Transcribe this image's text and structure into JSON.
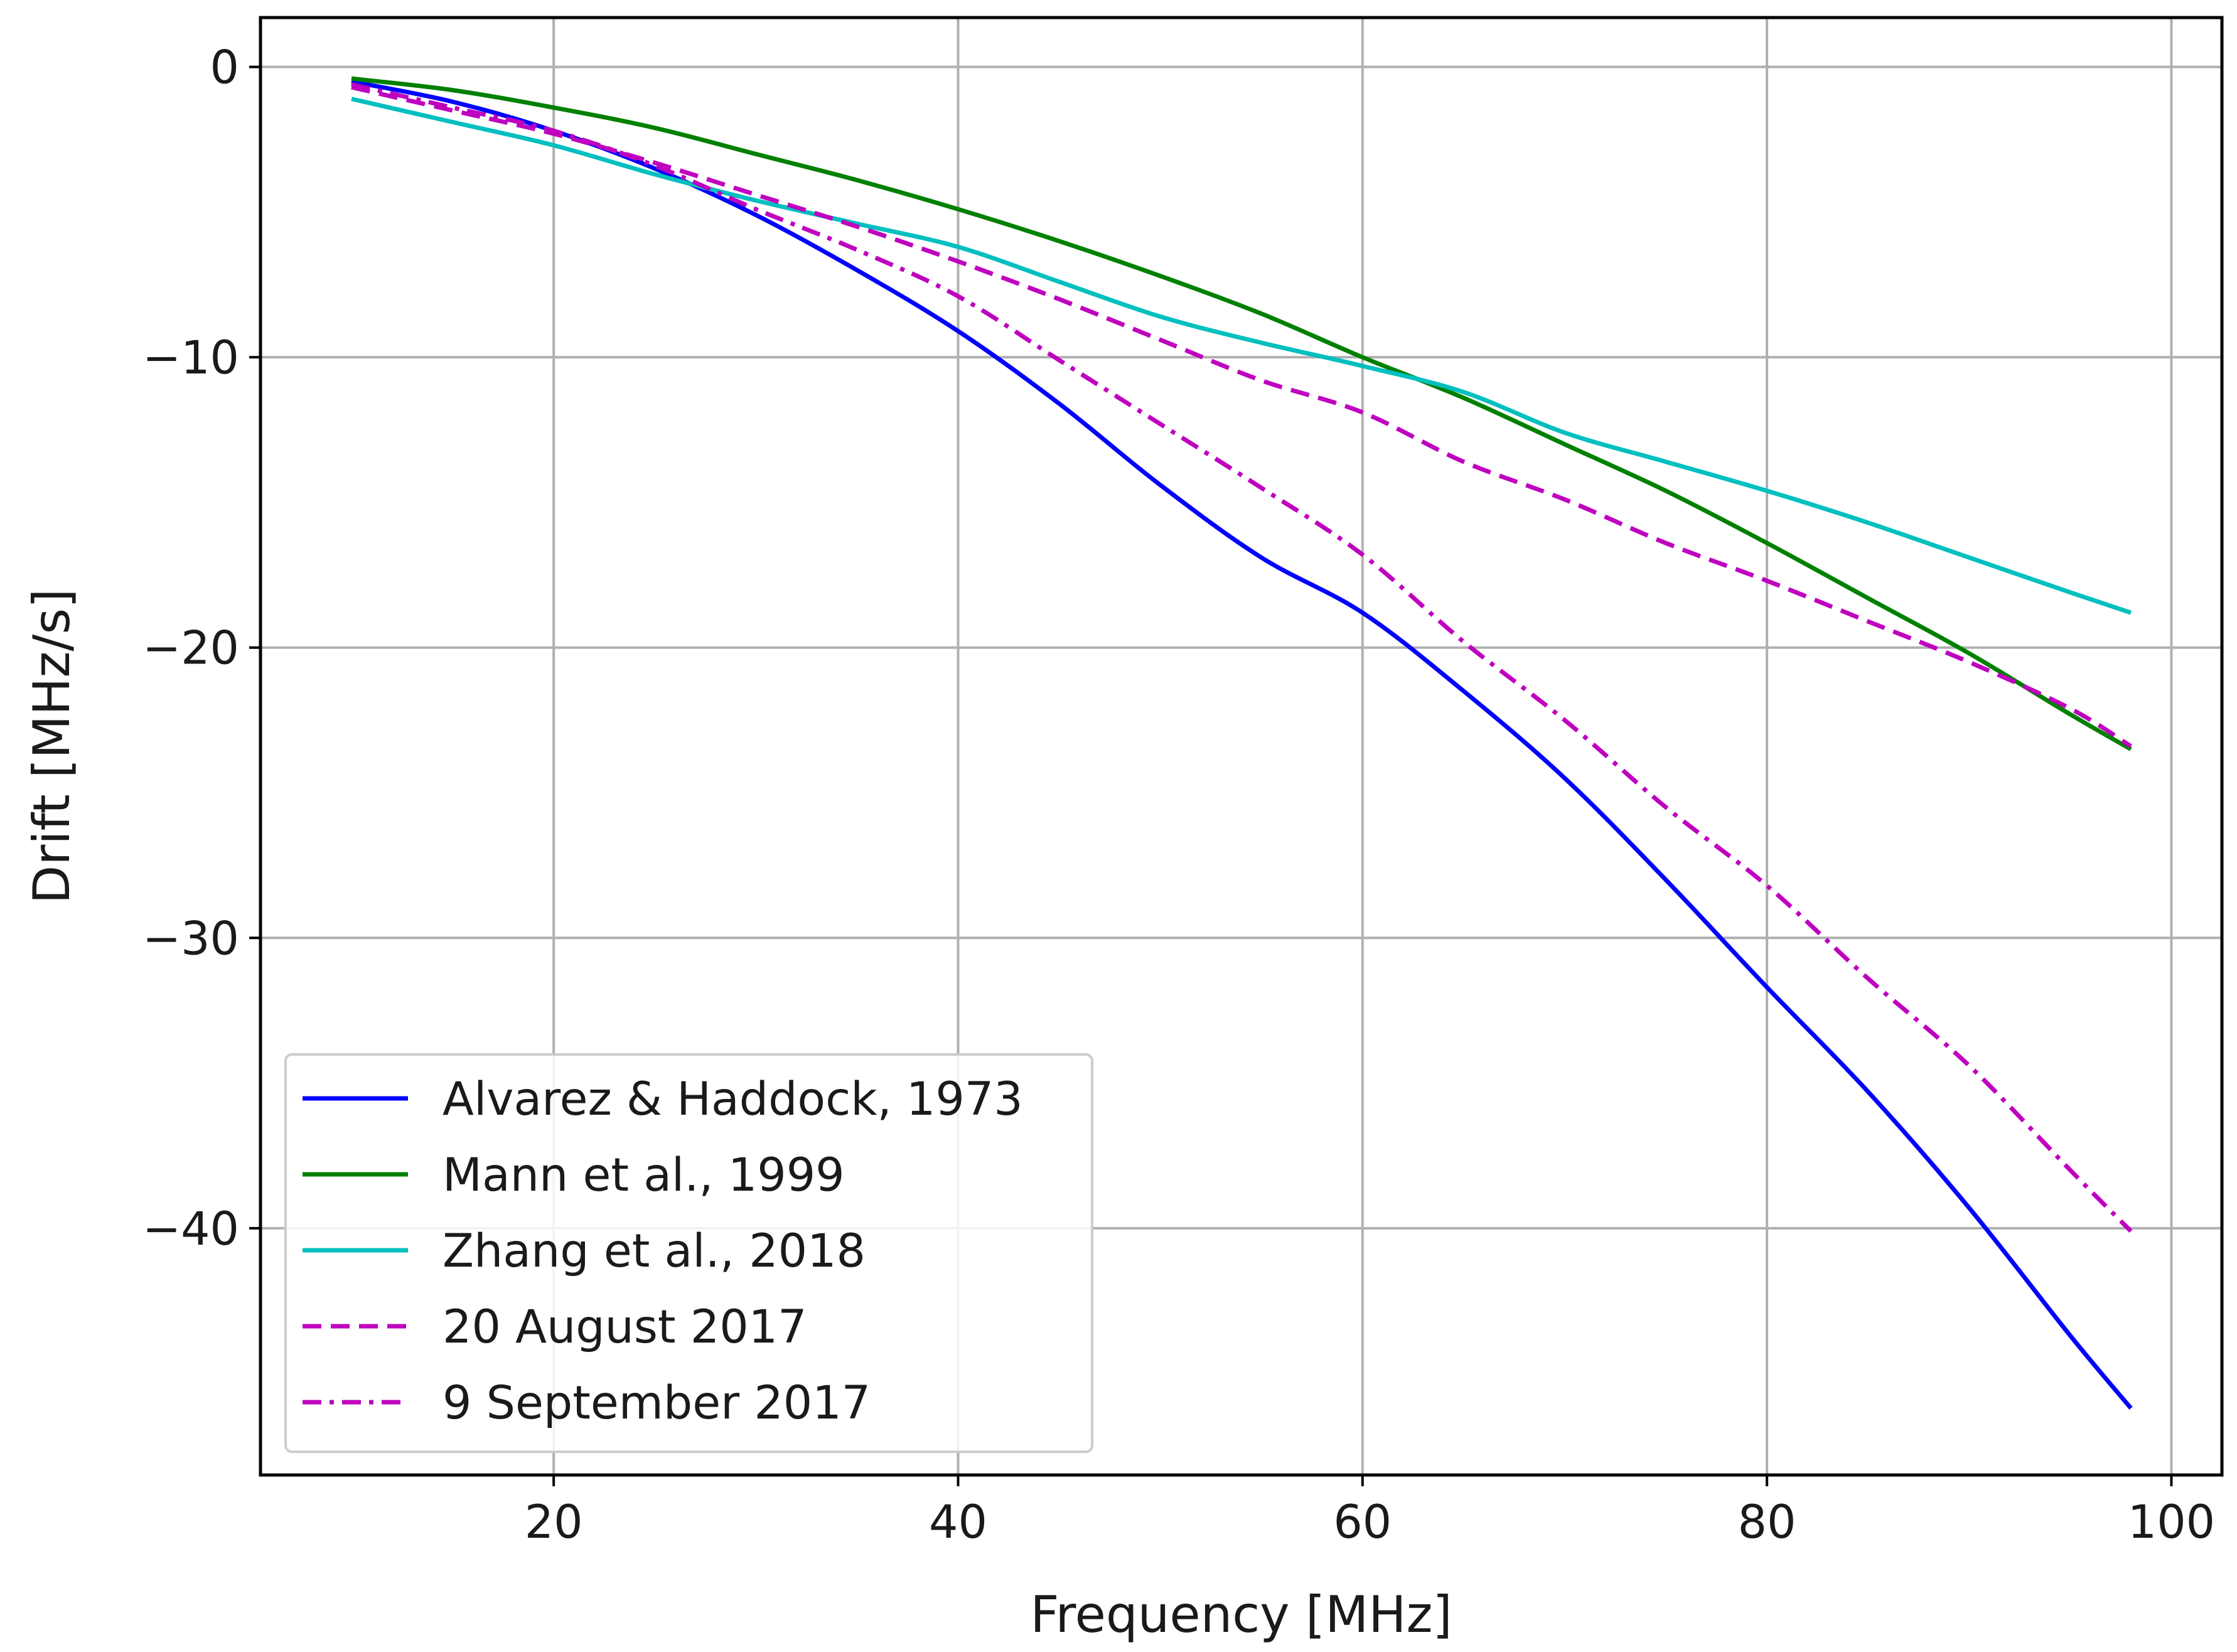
{
  "chart_data": {
    "type": "line",
    "title": "",
    "xlabel": "Frequency [MHz]",
    "ylabel": "Drift [MHz/s]",
    "xlim": [
      5.5,
      102.5
    ],
    "ylim": [
      -48.5,
      1.7
    ],
    "xticks": [
      20,
      40,
      60,
      80,
      100
    ],
    "yticks": [
      0,
      -10,
      -20,
      -30,
      -40
    ],
    "xtick_labels": [
      "20",
      "40",
      "60",
      "80",
      "100"
    ],
    "ytick_labels": [
      "0",
      "−10",
      "−20",
      "−30",
      "−40"
    ],
    "grid": true,
    "legend_position": "lower-left",
    "x": [
      10,
      15,
      20,
      25,
      30,
      35,
      40,
      45,
      50,
      55,
      60,
      65,
      70,
      75,
      80,
      85,
      90,
      95,
      98
    ],
    "series": [
      {
        "name": "Alvarez & Haddock, 1973",
        "color": "#0000ff",
        "dash": "solid",
        "values": [
          -0.5,
          -1.2,
          -2.2,
          -3.5,
          -5.1,
          -7.0,
          -9.1,
          -11.6,
          -14.4,
          -16.9,
          -18.8,
          -21.5,
          -24.5,
          -28.0,
          -31.7,
          -35.3,
          -39.3,
          -43.7,
          -46.2
        ]
      },
      {
        "name": "Mann et al., 1999",
        "color": "#008000",
        "dash": "solid",
        "values": [
          -0.4,
          -0.8,
          -1.4,
          -2.1,
          -3.0,
          -3.9,
          -4.9,
          -6.0,
          -7.2,
          -8.5,
          -10.0,
          -11.4,
          -13.0,
          -14.6,
          -16.4,
          -18.3,
          -20.2,
          -22.3,
          -23.5
        ]
      },
      {
        "name": "Zhang et al., 2018",
        "color": "#00bfbf",
        "dash": "solid",
        "values": [
          -1.1,
          -1.9,
          -2.7,
          -3.7,
          -4.6,
          -5.4,
          -6.2,
          -7.4,
          -8.6,
          -9.5,
          -10.3,
          -11.2,
          -12.6,
          -13.6,
          -14.6,
          -15.7,
          -16.9,
          -18.1,
          -18.8
        ]
      },
      {
        "name": "20 August 2017",
        "color": "#bf00bf",
        "dash": "dashed",
        "values": [
          -0.7,
          -1.5,
          -2.3,
          -3.3,
          -4.4,
          -5.5,
          -6.7,
          -8.0,
          -9.4,
          -10.8,
          -11.9,
          -13.6,
          -14.9,
          -16.4,
          -17.7,
          -19.1,
          -20.5,
          -22.1,
          -23.4
        ]
      },
      {
        "name": "9 September 2017",
        "color": "#bf00bf",
        "dash": "dashdot",
        "values": [
          -0.6,
          -1.4,
          -2.2,
          -3.4,
          -4.9,
          -6.3,
          -7.9,
          -10.1,
          -12.3,
          -14.5,
          -16.8,
          -19.8,
          -22.5,
          -25.5,
          -28.2,
          -31.4,
          -34.4,
          -38.0,
          -40.1
        ]
      }
    ]
  }
}
